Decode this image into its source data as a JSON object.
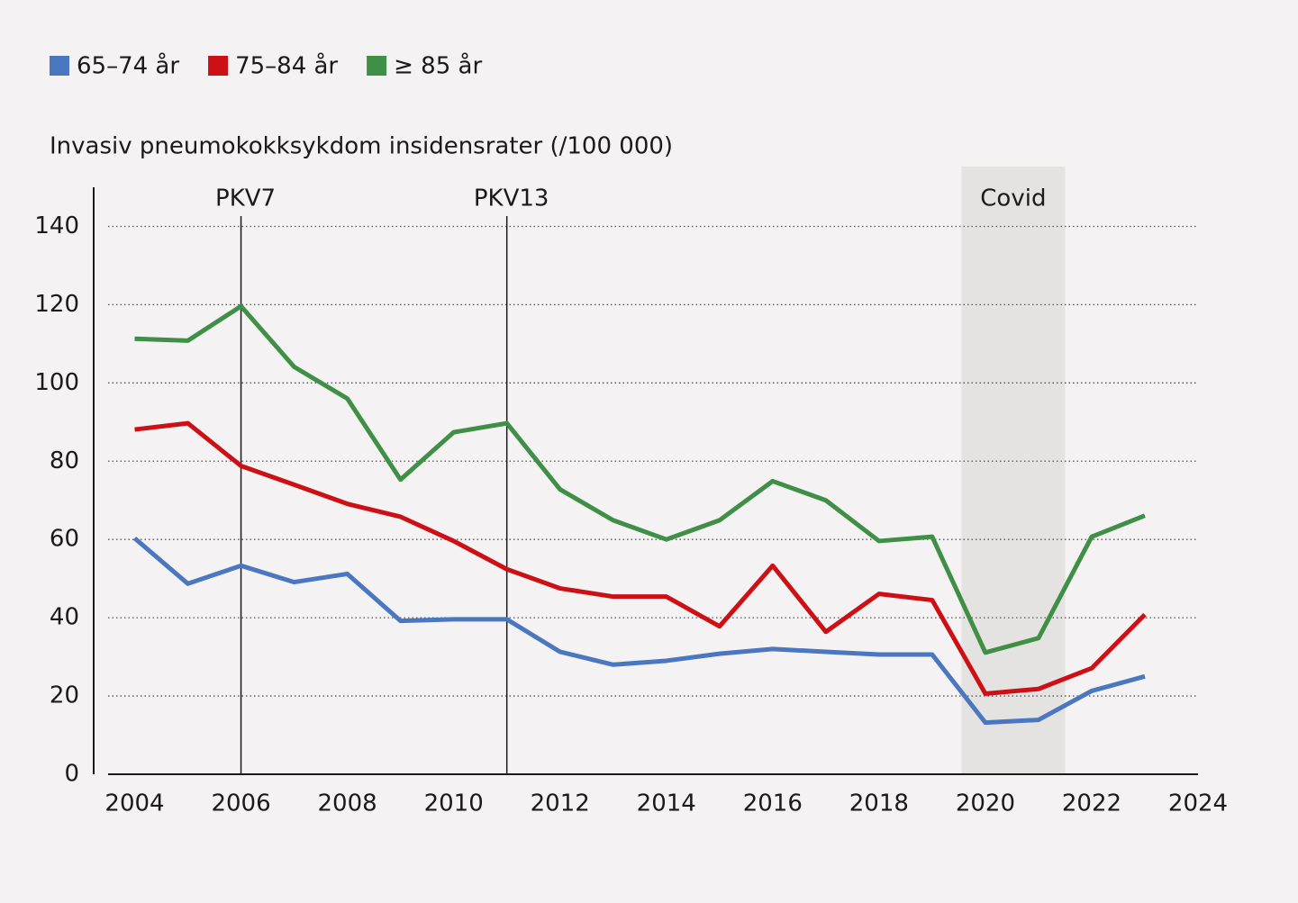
{
  "chart_data": {
    "type": "line",
    "y_axis_label": "Invasiv pneumokokksykdom insidensrater (/100 000)",
    "x": [
      2004,
      2005,
      2006,
      2007,
      2008,
      2009,
      2010,
      2011,
      2012,
      2013,
      2014,
      2015,
      2016,
      2017,
      2018,
      2019,
      2020,
      2021,
      2022,
      2023
    ],
    "series": [
      {
        "name": "65–74 år",
        "color": "#4a77c0",
        "values": [
          60.3,
          48.7,
          53.3,
          49.1,
          51.2,
          39.2,
          39.6,
          39.6,
          31.3,
          28,
          29,
          30.8,
          32,
          31.3,
          30.6,
          30.6,
          13.2,
          13.9,
          21.3,
          25
        ]
      },
      {
        "name": "75–84 år",
        "color": "#cc1016",
        "values": [
          88.1,
          89.7,
          78.8,
          74,
          69.1,
          65.8,
          59.6,
          52.4,
          47.5,
          45.4,
          45.4,
          37.8,
          53.3,
          36.4,
          46.1,
          44.5,
          20.6,
          21.8,
          27.1,
          40.8
        ]
      },
      {
        "name": "≥ 85 år",
        "color": "#3f8f46",
        "values": [
          111.3,
          110.8,
          119.6,
          104.1,
          96,
          75.3,
          87.4,
          89.7,
          72.8,
          64.9,
          60,
          64.9,
          74.9,
          70,
          59.6,
          60.7,
          31.1,
          34.8,
          60.7,
          66.1
        ]
      }
    ],
    "xlim": [
      2003.5,
      2024
    ],
    "xticks": [
      2004,
      2006,
      2008,
      2010,
      2012,
      2014,
      2016,
      2018,
      2020,
      2022,
      2024
    ],
    "ylim": [
      0,
      150
    ],
    "yticks": [
      0,
      20,
      40,
      60,
      80,
      100,
      120,
      140
    ],
    "grid": true,
    "legend": "top-left",
    "events": [
      {
        "label": "PKV7",
        "x": 2006
      },
      {
        "label": "PKV13",
        "x": 2011
      }
    ],
    "shaded": {
      "label": "Covid",
      "x": [
        2019.55,
        2021.5
      ]
    }
  }
}
